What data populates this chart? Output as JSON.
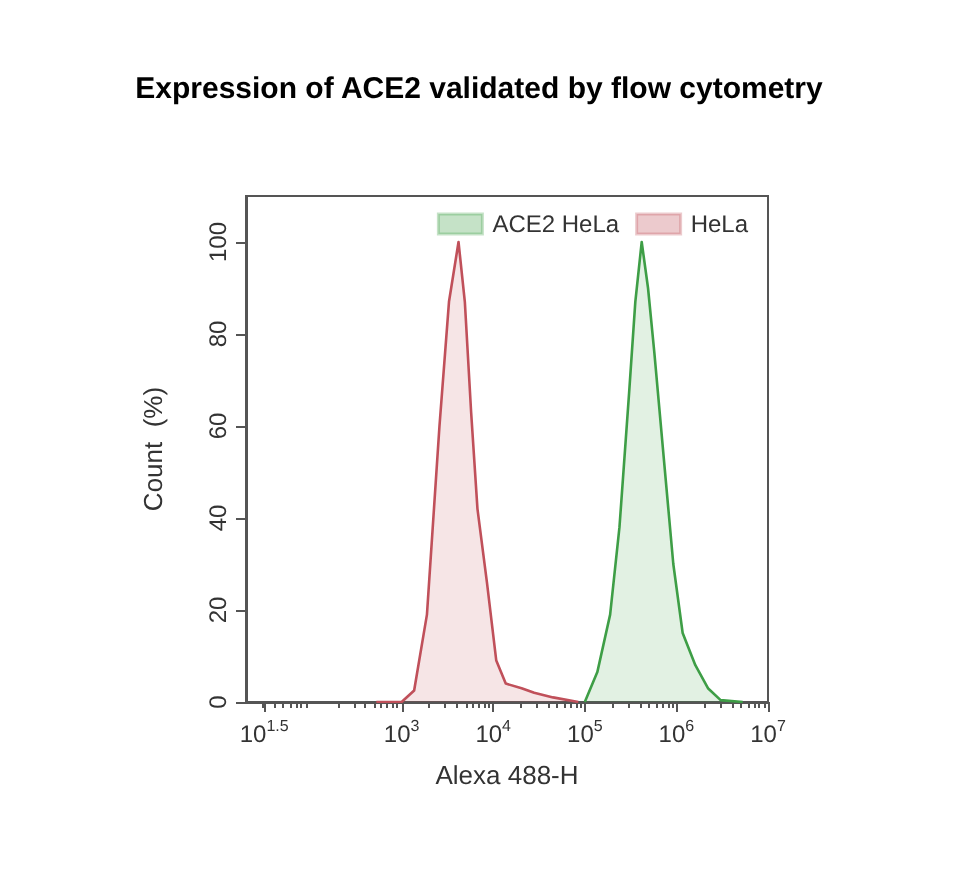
{
  "chart_data": {
    "type": "area",
    "title": "Expression of ACE2 validated by flow cytometry",
    "xlabel": "Alexa 488-H",
    "ylabel": "Count  (%)",
    "log": "x",
    "xlim": [
      20,
      10000000
    ],
    "xticks": [
      {
        "value": 31.6228,
        "label": "10$^{1.5}$"
      },
      {
        "value": 1000,
        "label": "10$^{3}$"
      },
      {
        "value": 10000,
        "label": "10$^{4}$"
      },
      {
        "value": 100000,
        "label": "10$^{5}$"
      },
      {
        "value": 1000000,
        "label": "10$^{6}$"
      },
      {
        "value": 10000000,
        "label": "10$^{7}$"
      }
    ],
    "ylim": [
      0,
      110
    ],
    "yticks": [
      0,
      20,
      40,
      60,
      80,
      100
    ],
    "grid": false,
    "legend": "top right",
    "marker": "none",
    "line_style": "solid",
    "series": [
      {
        "name": "ACE2 HeLa",
        "color": "#3e9e46",
        "x": [
          100000,
          137000,
          189000,
          239000,
          304000,
          356000,
          418000,
          490000,
          574000,
          728000,
          925000,
          1170000,
          1610000,
          2210000,
          3040000,
          5300000
        ],
        "values": [
          0,
          6.5,
          19,
          38,
          67,
          87,
          100,
          90,
          76,
          53,
          30,
          15,
          8,
          3,
          0.4,
          0
        ]
      },
      {
        "name": "HeLa",
        "color": "#c0505a",
        "x": [
          530,
          1000,
          1370,
          1890,
          2590,
          3290,
          4180,
          4900,
          5740,
          6730,
          8540,
          10800,
          13700,
          20400,
          28000,
          45000,
          85000
        ],
        "values": [
          0,
          0,
          2.5,
          19,
          60,
          87,
          100,
          87,
          63,
          42,
          26,
          9,
          4,
          3,
          2,
          1,
          0
        ]
      }
    ]
  }
}
